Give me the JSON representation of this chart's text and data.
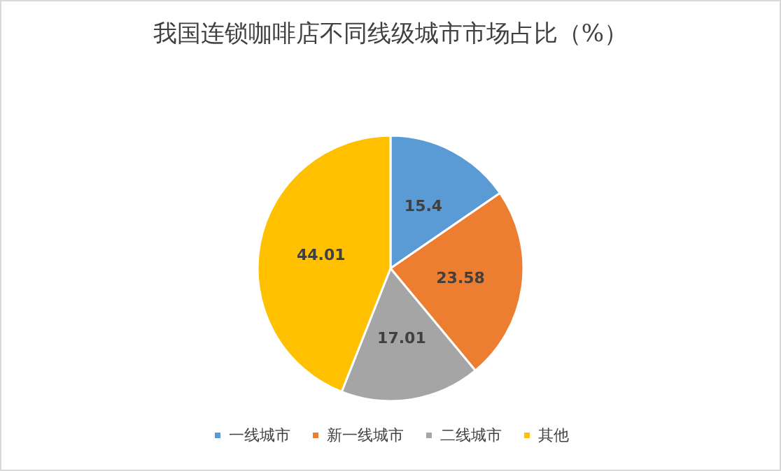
{
  "chart_data": {
    "type": "pie",
    "title": "我国连锁咖啡店不同线级城市市场占比（%）",
    "categories": [
      "一线城市",
      "新一线城市",
      "二线城市",
      "其他"
    ],
    "values": [
      15.4,
      23.58,
      17.01,
      44.01
    ],
    "colors": [
      "#5b9bd5",
      "#ed7d31",
      "#a5a5a5",
      "#ffc000"
    ],
    "data_labels": true,
    "legend": "bottom"
  }
}
